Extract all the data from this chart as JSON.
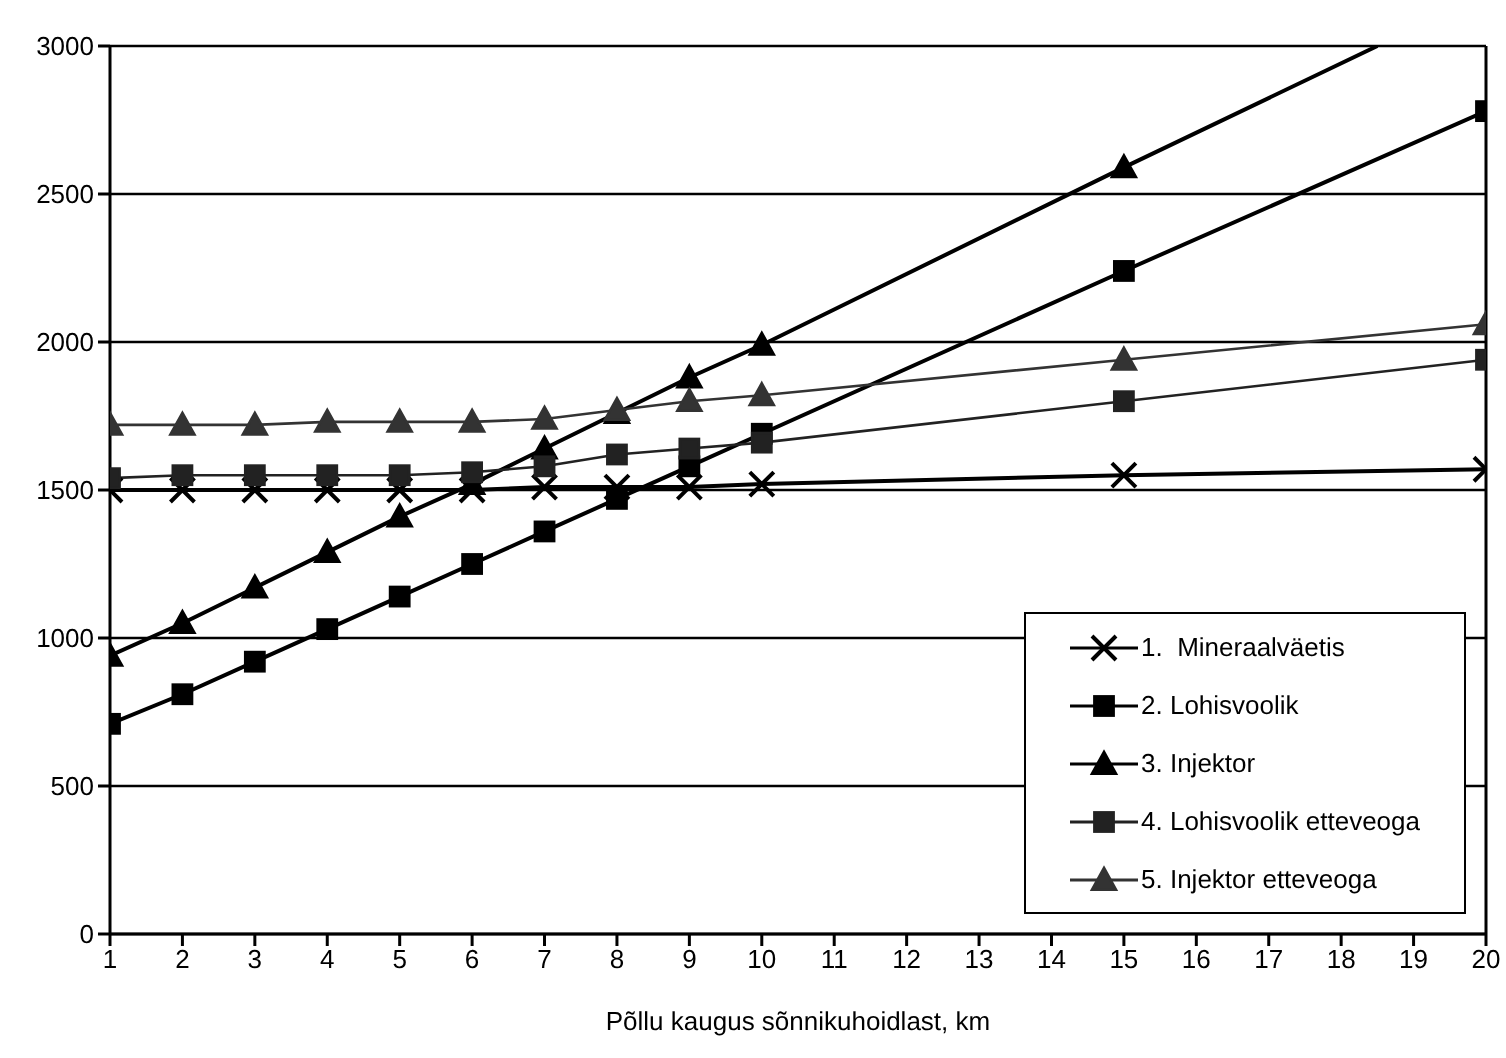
{
  "chart_data": {
    "type": "line",
    "xlabel": "Põllu kaugus sõnnikuhoidlast, km",
    "xlim": [
      1,
      20
    ],
    "xticks": [
      1,
      2,
      3,
      4,
      5,
      6,
      7,
      8,
      9,
      10,
      11,
      12,
      13,
      14,
      15,
      16,
      17,
      18,
      19,
      20
    ],
    "ylim": [
      0,
      3000
    ],
    "yticks": [
      0,
      500,
      1000,
      1500,
      2000,
      2500,
      3000
    ],
    "grid": "y",
    "legend": "bottom right",
    "line_style": "solid",
    "series": [
      {
        "name": "1.  Mineraalväetis",
        "color": "#000000",
        "marker": "cross",
        "x": [
          1,
          2,
          3,
          4,
          5,
          6,
          7,
          8,
          9,
          10,
          15,
          20
        ],
        "values": [
          1500,
          1500,
          1500,
          1500,
          1500,
          1500,
          1510,
          1510,
          1510,
          1520,
          1550,
          1570
        ]
      },
      {
        "name": "2. Lohisvoolik",
        "color": "#000000",
        "marker": "square",
        "x": [
          1,
          2,
          3,
          4,
          5,
          6,
          7,
          8,
          9,
          10,
          15,
          20
        ],
        "values": [
          710,
          810,
          920,
          1030,
          1140,
          1250,
          1360,
          1470,
          1580,
          1690,
          2240,
          2780
        ]
      },
      {
        "name": "3. Injektor",
        "color": "#000000",
        "marker": "triangle",
        "x": [
          1,
          2,
          3,
          4,
          5,
          6,
          7,
          8,
          9,
          10,
          15,
          18.5
        ],
        "values": [
          940,
          1050,
          1170,
          1290,
          1410,
          1520,
          1640,
          1760,
          1880,
          1990,
          2590,
          3000
        ]
      },
      {
        "name": "4. Lohisvoolik etteveoga",
        "color": "#222222",
        "marker": "square",
        "x": [
          1,
          2,
          3,
          4,
          5,
          6,
          7,
          8,
          9,
          10,
          15,
          20
        ],
        "values": [
          1540,
          1550,
          1550,
          1550,
          1550,
          1560,
          1580,
          1620,
          1640,
          1660,
          1800,
          1940
        ]
      },
      {
        "name": "5. Injektor etteveoga",
        "color": "#333333",
        "marker": "triangle",
        "x": [
          1,
          2,
          3,
          4,
          5,
          6,
          7,
          8,
          9,
          10,
          15,
          20
        ],
        "values": [
          1720,
          1720,
          1720,
          1730,
          1730,
          1730,
          1740,
          1770,
          1800,
          1820,
          1940,
          2060
        ]
      }
    ]
  }
}
